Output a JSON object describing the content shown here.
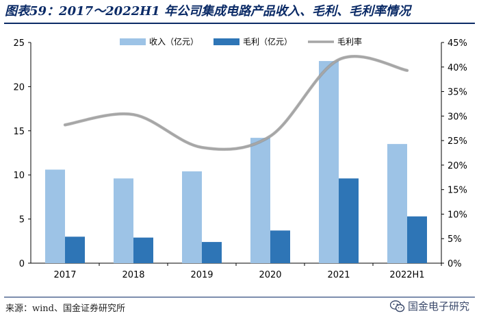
{
  "page": {
    "title": "图表59：2017～2022H1 年公司集成电路产品收入、毛利、毛利率情况",
    "source": "来源：wind、国金证券研究所",
    "watermark": "国金电子研究",
    "watermark_icon": "wechat-icon"
  },
  "colors": {
    "revenue": "#9dc3e6",
    "gross_profit": "#2e75b6",
    "margin": "#a6a6a6",
    "title": "#0a2a66"
  },
  "chart_data": {
    "type": "bar",
    "categories": [
      "2017",
      "2018",
      "2019",
      "2020",
      "2021",
      "2022H1"
    ],
    "series": [
      {
        "name": "收入（亿元）",
        "type": "bar",
        "axis": "left",
        "values": [
          10.6,
          9.6,
          10.4,
          14.2,
          22.9,
          13.5
        ]
      },
      {
        "name": "毛利（亿元）",
        "type": "bar",
        "axis": "left",
        "values": [
          3.0,
          2.9,
          2.4,
          3.7,
          9.6,
          5.3
        ]
      },
      {
        "name": "毛利率",
        "type": "line",
        "axis": "right",
        "values": [
          28.2,
          30.3,
          23.6,
          25.9,
          41.5,
          39.3
        ]
      }
    ],
    "y_left": {
      "min": 0,
      "max": 25,
      "ticks": [
        0,
        5,
        10,
        15,
        20,
        25
      ]
    },
    "y_right": {
      "min": 0,
      "max": 45,
      "ticks": [
        "0%",
        "5%",
        "10%",
        "15%",
        "20%",
        "25%",
        "30%",
        "35%",
        "40%",
        "45%"
      ]
    },
    "legend_position": "top-center",
    "grid": false
  }
}
